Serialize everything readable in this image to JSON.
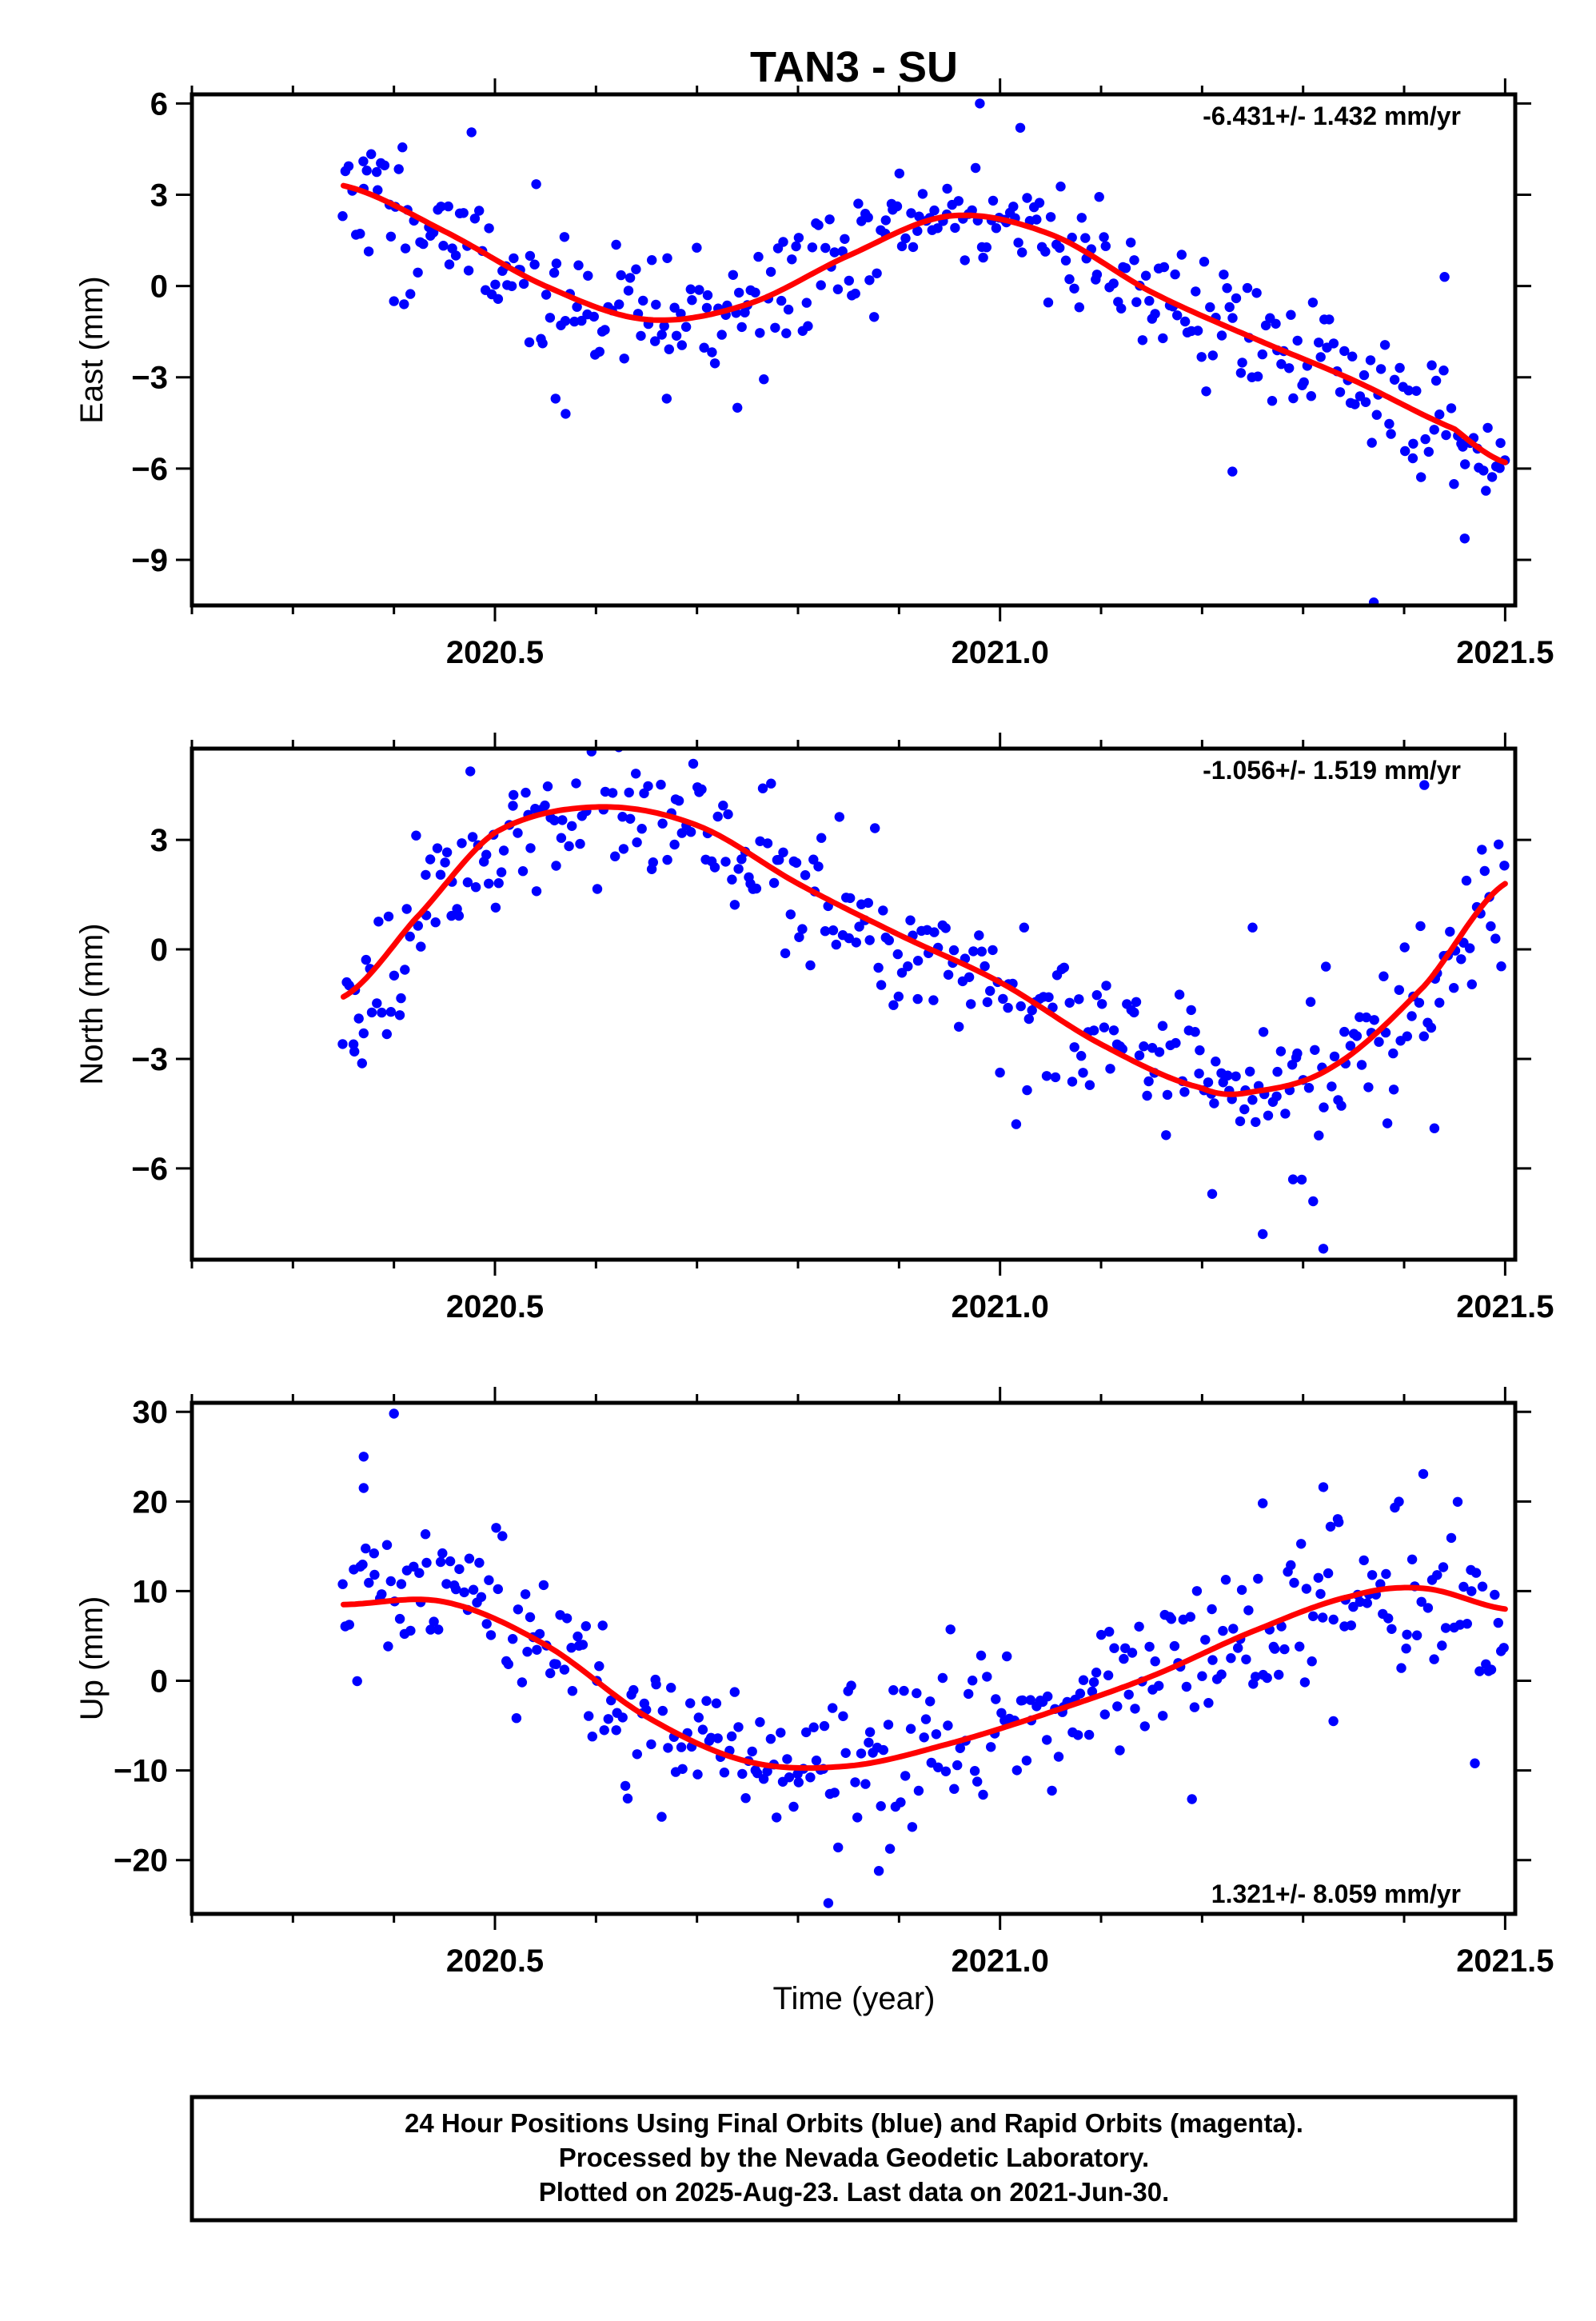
{
  "title": "TAN3 - SU",
  "xlabel": "Time (year)",
  "footer": [
    "24 Hour Positions Using Final Orbits (blue) and Rapid Orbits (magenta).",
    "Processed by the Nevada Geodetic Laboratory.",
    "Plotted on 2025-Aug-23. Last data on 2021-Jun-30."
  ],
  "colors": {
    "final_orbit_points": "#0000ff",
    "fit_curve": "#ff0000",
    "frame": "#000000"
  },
  "chart_data": [
    {
      "type": "scatter",
      "ylabel": "East (mm)",
      "rate_text": "-6.431+/- 1.432 mm/yr",
      "rate_position": "top-right",
      "xlim": [
        2020.2,
        2021.51
      ],
      "ylim": [
        -10.5,
        6.3
      ],
      "yticks": [
        6,
        3,
        0,
        -3,
        -6,
        -9
      ],
      "ytick_labels": [
        "6",
        "3",
        "0",
        "−3",
        "−6",
        "−9"
      ],
      "xticks": [
        2020.5,
        2021.0,
        2021.5
      ],
      "xtick_labels": [
        "2020.5",
        "2021.0",
        "2021.5"
      ],
      "grid": false,
      "seed": 11,
      "fit": {
        "x": [
          2020.35,
          2020.45,
          2020.55,
          2020.65,
          2020.75,
          2020.85,
          2020.95,
          2021.05,
          2021.15,
          2021.25,
          2021.35,
          2021.45,
          2021.5
        ],
        "y": [
          3.3,
          1.8,
          0.0,
          -1.1,
          -0.6,
          1.0,
          2.3,
          1.7,
          -0.2,
          -1.7,
          -3.1,
          -4.7,
          -5.8
        ]
      },
      "noise": 1.05,
      "outliers": [
        [
          2020.37,
          3.2
        ],
        [
          2020.57,
          -4.2
        ],
        [
          2020.56,
          -3.7
        ],
        [
          2020.67,
          -3.7
        ],
        [
          2020.74,
          -4.0
        ],
        [
          2020.98,
          6.0
        ],
        [
          2021.02,
          5.2
        ],
        [
          2021.23,
          -6.1
        ],
        [
          2021.37,
          -10.4
        ],
        [
          2021.44,
          0.3
        ],
        [
          2021.46,
          -8.3
        ],
        [
          2020.4,
          -0.5
        ],
        [
          2020.41,
          -0.6
        ]
      ]
    },
    {
      "type": "scatter",
      "ylabel": "North (mm)",
      "rate_text": "-1.056+/- 1.519 mm/yr",
      "rate_position": "top-right",
      "xlim": [
        2020.2,
        2021.51
      ],
      "ylim": [
        -8.5,
        5.5
      ],
      "yticks": [
        3,
        0,
        -3,
        -6
      ],
      "ytick_labels": [
        "3",
        "0",
        "−3",
        "−6"
      ],
      "xticks": [
        2020.5,
        2021.0,
        2021.5
      ],
      "xtick_labels": [
        "2020.5",
        "2021.0",
        "2021.5"
      ],
      "grid": false,
      "seed": 23,
      "fit": {
        "x": [
          2020.35,
          2020.42,
          2020.5,
          2020.6,
          2020.7,
          2020.8,
          2020.9,
          2021.0,
          2021.1,
          2021.2,
          2021.25,
          2021.33,
          2021.42,
          2021.5
        ],
        "y": [
          -1.3,
          0.8,
          3.2,
          3.9,
          3.4,
          1.8,
          0.4,
          -0.9,
          -2.6,
          -3.8,
          -3.9,
          -3.2,
          -1.0,
          1.8
        ]
      },
      "noise": 1.0,
      "outliers": [
        [
          2021.26,
          -7.8
        ],
        [
          2021.32,
          -8.2
        ],
        [
          2021.31,
          -6.9
        ],
        [
          2021.29,
          -6.3
        ],
        [
          2021.25,
          0.6
        ],
        [
          2021.42,
          4.5
        ],
        [
          2020.36,
          -2.6
        ],
        [
          2020.37,
          -2.3
        ],
        [
          2021.21,
          -6.7
        ],
        [
          2021.43,
          -4.9
        ]
      ]
    },
    {
      "type": "scatter",
      "ylabel": "Up (mm)",
      "rate_text": "1.321+/- 8.059 mm/yr",
      "rate_position": "bottom-right",
      "xlim": [
        2020.2,
        2021.51
      ],
      "ylim": [
        -26,
        31
      ],
      "yticks": [
        30,
        20,
        10,
        0,
        -10,
        -20
      ],
      "ytick_labels": [
        "30",
        "20",
        "10",
        "0",
        "−10",
        "−20"
      ],
      "xticks": [
        2020.5,
        2021.0,
        2021.5
      ],
      "xtick_labels": [
        "2020.5",
        "2021.0",
        "2021.5"
      ],
      "grid": false,
      "seed": 37,
      "fit": {
        "x": [
          2020.35,
          2020.45,
          2020.55,
          2020.65,
          2020.75,
          2020.85,
          2020.95,
          2021.05,
          2021.15,
          2021.25,
          2021.35,
          2021.42,
          2021.5
        ],
        "y": [
          8.5,
          8.8,
          4.0,
          -4.0,
          -9.0,
          -9.5,
          -7.0,
          -3.5,
          0.5,
          5.5,
          9.5,
          10.3,
          8.0
        ]
      },
      "noise": 4.2,
      "outliers": [
        [
          2020.4,
          29.8
        ],
        [
          2020.37,
          25.0
        ],
        [
          2020.83,
          -24.8
        ],
        [
          2020.88,
          -21.2
        ],
        [
          2021.19,
          -13.2
        ],
        [
          2021.47,
          -9.2
        ],
        [
          2021.32,
          21.6
        ],
        [
          2021.26,
          19.8
        ],
        [
          2021.33,
          -4.5
        ],
        [
          2020.37,
          21.5
        ]
      ]
    }
  ]
}
